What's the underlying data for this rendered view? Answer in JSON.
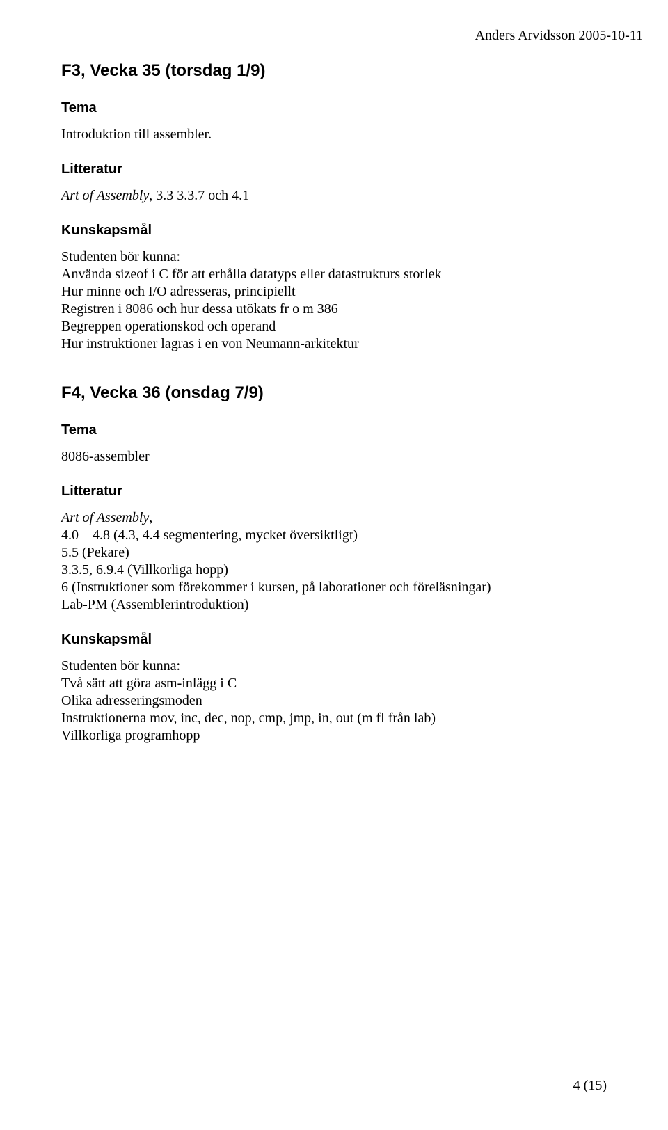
{
  "header": {
    "author_date": "Anders Arvidsson 2005-10-11"
  },
  "s1": {
    "title": "F3, Vecka 35 (torsdag 1/9)",
    "tema_label": "Tema",
    "tema_text": "Introduktion till assembler.",
    "litt_label": "Litteratur",
    "litt_prefix": "Art of Assembly",
    "litt_rest": ", 3.3 3.3.7 och 4.1",
    "kun_label": "Kunskapsmål",
    "kun_intro": "Studenten bör kunna:",
    "kun_items": [
      "Använda sizeof i C för att erhålla datatyps eller datastrukturs storlek",
      "Hur minne och I/O adresseras, principiellt",
      "Registren i 8086 och hur dessa utökats fr o m 386",
      "Begreppen operationskod och operand",
      "Hur instruktioner lagras i en von Neumann-arkitektur"
    ]
  },
  "s2": {
    "title": "F4, Vecka 36 (onsdag 7/9)",
    "tema_label": "Tema",
    "tema_text": "8086-assembler",
    "litt_label": "Litteratur",
    "litt_prefix": "Art of Assembly",
    "litt_suffix": ",",
    "litt_lines": [
      "4.0 – 4.8 (4.3, 4.4 segmentering, mycket översiktligt)",
      "5.5 (Pekare)",
      "3.3.5, 6.9.4 (Villkorliga hopp)",
      "6 (Instruktioner som förekommer i kursen, på laborationer och föreläsningar)",
      "Lab-PM (Assemblerintroduktion)"
    ],
    "kun_label": "Kunskapsmål",
    "kun_intro": "Studenten bör kunna:",
    "kun_items": [
      "Två sätt att göra asm-inlägg i C",
      "Olika adresseringsmoden",
      "Instruktionerna mov, inc, dec, nop, cmp, jmp, in, out (m fl från lab)",
      "Villkorliga programhopp"
    ]
  },
  "footer": {
    "page": "4 (15)"
  }
}
